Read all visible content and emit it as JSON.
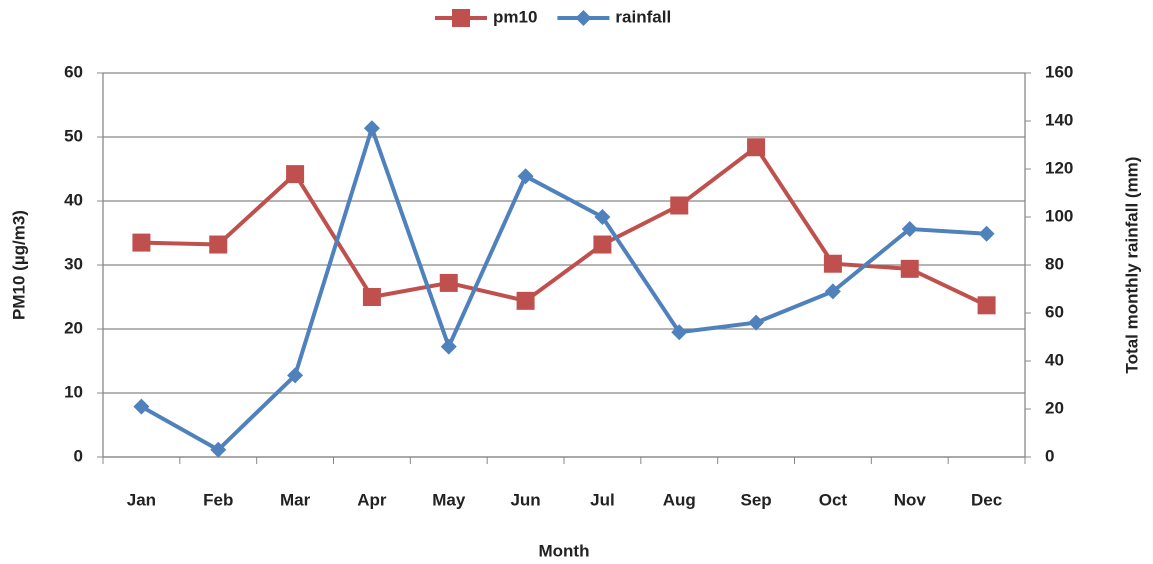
{
  "chart_data": {
    "type": "line",
    "x_label": "Month",
    "y_label": "PM10 (µg/m3)",
    "y2_label": "Total monthly rainfall (mm)",
    "categories": [
      "Jan",
      "Feb",
      "Mar",
      "Apr",
      "May",
      "Jun",
      "Jul",
      "Aug",
      "Sep",
      "Oct",
      "Nov",
      "Dec"
    ],
    "series": [
      {
        "name": "pm10",
        "color": "#c0504d",
        "marker": "square",
        "axis": "y",
        "values": [
          33.5,
          33.2,
          44.2,
          25,
          27.2,
          24.4,
          33.2,
          39.3,
          48.4,
          30.2,
          29.4,
          23.7
        ]
      },
      {
        "name": "rainfall",
        "color": "#4f81bd",
        "marker": "diamond",
        "axis": "y2",
        "values": [
          21,
          3,
          34,
          137,
          46,
          117,
          100,
          52,
          56,
          69,
          95,
          93
        ]
      }
    ],
    "ylim": [
      0,
      60
    ],
    "yticks": [
      0,
      10,
      20,
      30,
      40,
      50,
      60
    ],
    "y2lim": [
      0,
      160
    ],
    "y2ticks": [
      0,
      20,
      40,
      60,
      80,
      100,
      120,
      140,
      160
    ],
    "grid": true,
    "legend": "top"
  }
}
